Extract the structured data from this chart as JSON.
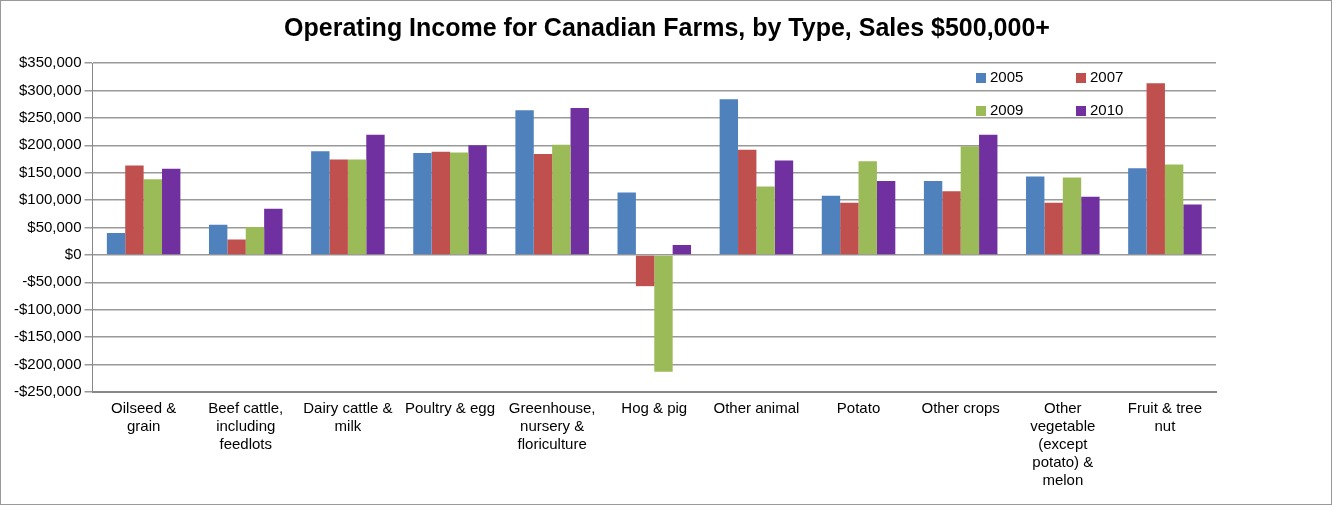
{
  "chart_data": {
    "type": "bar",
    "title": "Operating Income for Canadian Farms, by Type, Sales $500,000+",
    "categories": [
      "Oilseed & grain",
      "Beef cattle, including feedlots",
      "Dairy cattle & milk",
      "Poultry & egg",
      "Greenhouse, nursery & floriculture",
      "Hog & pig",
      "Other animal",
      "Potato",
      "Other crops",
      "Other vegetable (except potato) & melon",
      "Fruit & tree nut"
    ],
    "series": [
      {
        "name": "2005",
        "color": "#4f81bd",
        "values": [
          40000,
          55000,
          189000,
          186000,
          264000,
          114000,
          284000,
          108000,
          135000,
          143000,
          158000
        ]
      },
      {
        "name": "2007",
        "color": "#c0504d",
        "values": [
          163000,
          28000,
          174000,
          188000,
          184000,
          -57000,
          192000,
          95000,
          116000,
          95000,
          313000
        ]
      },
      {
        "name": "2009",
        "color": "#9bbb59",
        "values": [
          138000,
          51000,
          174000,
          187000,
          201000,
          -213000,
          125000,
          171000,
          198000,
          141000,
          165000
        ]
      },
      {
        "name": "2010",
        "color": "#7030a0",
        "values": [
          157000,
          84000,
          219000,
          200000,
          268000,
          18000,
          172000,
          135000,
          219000,
          106000,
          92000
        ]
      }
    ],
    "ylim": [
      -250000,
      350000
    ],
    "yticks": [
      {
        "value": -250000,
        "label": "-$250,000"
      },
      {
        "value": -200000,
        "label": "-$200,000"
      },
      {
        "value": -150000,
        "label": "-$150,000"
      },
      {
        "value": -100000,
        "label": "-$100,000"
      },
      {
        "value": -50000,
        "label": "-$50,000"
      },
      {
        "value": 0,
        "label": "$0"
      },
      {
        "value": 50000,
        "label": "$50,000"
      },
      {
        "value": 100000,
        "label": "$100,000"
      },
      {
        "value": 150000,
        "label": "$150,000"
      },
      {
        "value": 200000,
        "label": "$200,000"
      },
      {
        "value": 250000,
        "label": "$250,000"
      },
      {
        "value": 300000,
        "label": "$300,000"
      },
      {
        "value": 350000,
        "label": "$350,000"
      }
    ],
    "grid": "y",
    "legend": "top right"
  }
}
